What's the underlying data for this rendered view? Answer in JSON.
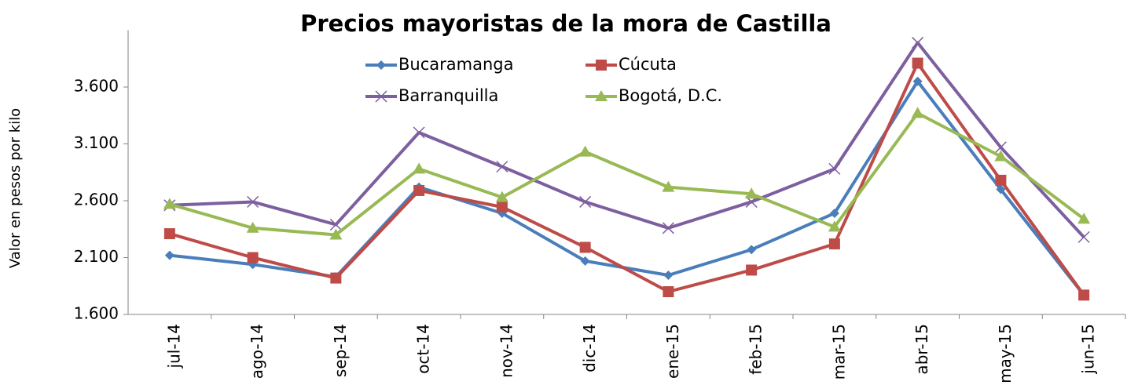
{
  "chart_data": {
    "type": "line",
    "title": "Precios mayoristas de la mora de Castilla",
    "y_label": "Valor en pesos por kilo",
    "categories": [
      "jul-14",
      "ago-14",
      "sep-14",
      "oct-14",
      "nov-14",
      "dic-14",
      "ene-15",
      "feb-15",
      "mar-15",
      "abr-15",
      "may-15",
      "jun-15"
    ],
    "series": [
      {
        "name": "Bucaramanga",
        "color": "#4a7ebb",
        "marker": "diamond",
        "values": [
          2120,
          2040,
          1930,
          2720,
          2490,
          2070,
          1945,
          2170,
          2490,
          3650,
          2700,
          1770
        ]
      },
      {
        "name": "Cúcuta",
        "color": "#be4b48",
        "marker": "square",
        "values": [
          2310,
          2100,
          1920,
          2690,
          2545,
          2190,
          1800,
          1990,
          2220,
          3810,
          2780,
          1770
        ]
      },
      {
        "name": "Barranquilla",
        "color": "#7d5fa0",
        "marker": "x",
        "values": [
          2560,
          2590,
          2390,
          3200,
          2900,
          2590,
          2360,
          2590,
          2880,
          3990,
          3070,
          2280
        ]
      },
      {
        "name": "Bogotá, D.C.",
        "color": "#98b954",
        "marker": "triangle",
        "values": [
          2570,
          2360,
          2300,
          2880,
          2630,
          3030,
          2720,
          2660,
          2370,
          3370,
          2990,
          2440
        ]
      }
    ],
    "ylim": [
      1600,
      4100
    ],
    "yticks": [
      {
        "value": 1600,
        "label": "1.600"
      },
      {
        "value": 2100,
        "label": "2.100"
      },
      {
        "value": 2600,
        "label": "2.600"
      },
      {
        "value": 3100,
        "label": "3.100"
      },
      {
        "value": 3600,
        "label": "3.600"
      }
    ]
  }
}
